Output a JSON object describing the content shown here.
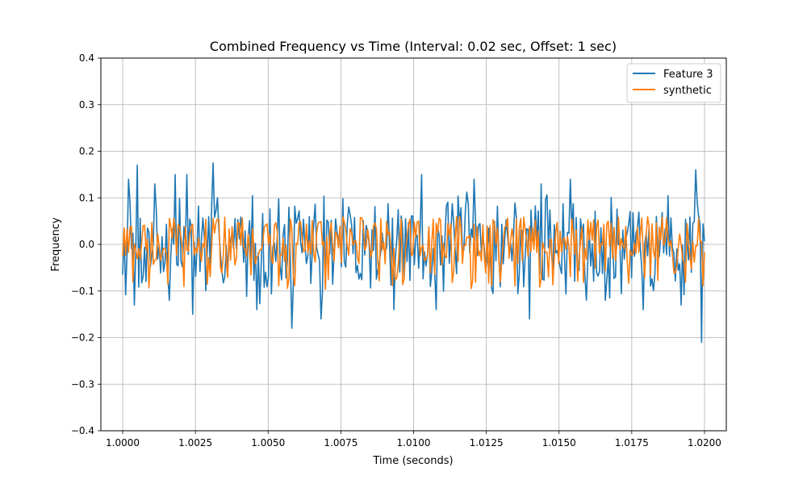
{
  "chart_data": {
    "type": "line",
    "title": "Combined Frequency vs Time (Interval: 0.02 sec, Offset: 1 sec)",
    "xlabel": "Time (seconds)",
    "ylabel": "Frequency",
    "xlim": [
      0.99925,
      1.02075
    ],
    "ylim": [
      -0.4,
      0.4
    ],
    "x_ticks": [
      1.0,
      1.0025,
      1.005,
      1.0075,
      1.01,
      1.0125,
      1.015,
      1.0175,
      1.02
    ],
    "x_tick_labels": [
      "1.0000",
      "1.0025",
      "1.0050",
      "1.0075",
      "1.0100",
      "1.0125",
      "1.0150",
      "1.0175",
      "1.0200"
    ],
    "y_ticks": [
      -0.4,
      -0.3,
      -0.2,
      -0.1,
      0.0,
      0.1,
      0.2,
      0.3,
      0.4
    ],
    "y_tick_labels": [
      "−0.4",
      "−0.3",
      "−0.2",
      "−0.1",
      "0.0",
      "0.1",
      "0.2",
      "0.3",
      "0.4"
    ],
    "grid": true,
    "legend_position": "top-right",
    "x_range": [
      1.0,
      1.02
    ],
    "sample_count": 400,
    "series": [
      {
        "name": "Feature 3",
        "color": "#1f77b4",
        "amplitude": 0.13,
        "extremes": [
          [
            1.0002,
            0.14
          ],
          [
            1.0004,
            -0.13
          ],
          [
            1.0005,
            0.17
          ],
          [
            1.0011,
            0.13
          ],
          [
            1.0016,
            -0.12
          ],
          [
            1.0018,
            0.15
          ],
          [
            1.0022,
            0.15
          ],
          [
            1.0024,
            -0.15
          ],
          [
            1.0031,
            0.175
          ],
          [
            1.0046,
            -0.14
          ],
          [
            1.0058,
            -0.18
          ],
          [
            1.0068,
            -0.16
          ],
          [
            1.0093,
            -0.14
          ],
          [
            1.0103,
            0.15
          ],
          [
            1.0108,
            -0.14
          ],
          [
            1.0121,
            0.14
          ],
          [
            1.014,
            -0.16
          ],
          [
            1.0144,
            0.13
          ],
          [
            1.0154,
            0.14
          ],
          [
            1.0166,
            -0.12
          ],
          [
            1.0179,
            -0.14
          ],
          [
            1.0192,
            -0.13
          ],
          [
            1.0197,
            0.16
          ],
          [
            1.0199,
            -0.21
          ]
        ]
      },
      {
        "name": "synthetic",
        "color": "#ff7f0e",
        "amplitude": 0.06
      }
    ]
  }
}
